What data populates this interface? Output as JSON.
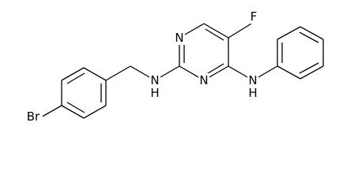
{
  "atoms": [
    {
      "label": "F"
    },
    {
      "label": "N"
    },
    {
      "label": "N"
    },
    {
      "label": "N"
    },
    {
      "label": "H"
    },
    {
      "label": "N"
    },
    {
      "label": "H"
    },
    {
      "label": "Br"
    }
  ]
}
